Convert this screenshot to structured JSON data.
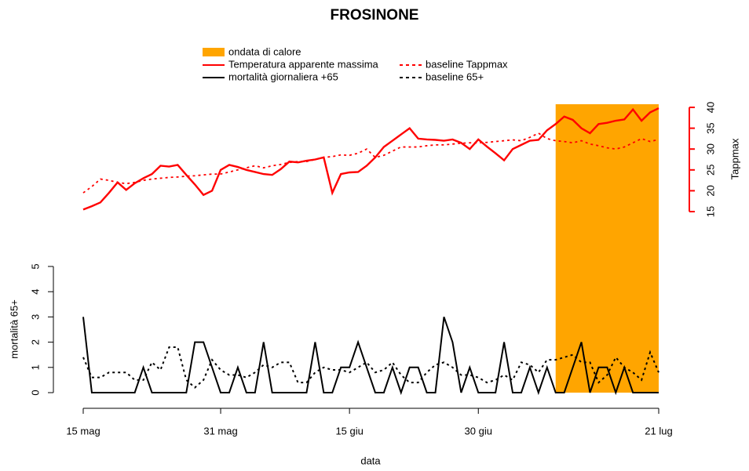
{
  "chart_data": {
    "type": "line",
    "title": "FROSINONE",
    "x_label": "data",
    "y_label": "mortalità 65+",
    "y2_label": "Tappmax",
    "categories": [
      "15 mag",
      null,
      null,
      null,
      null,
      null,
      null,
      null,
      null,
      null,
      null,
      null,
      null,
      null,
      null,
      null,
      "31 mag",
      null,
      null,
      null,
      null,
      null,
      null,
      null,
      null,
      null,
      null,
      null,
      null,
      null,
      null,
      "15 giu",
      null,
      null,
      null,
      null,
      null,
      null,
      null,
      null,
      null,
      null,
      null,
      null,
      null,
      null,
      "30 giu",
      null,
      null,
      null,
      null,
      null,
      null,
      null,
      null,
      null,
      null,
      null,
      null,
      null,
      null,
      null,
      null,
      null,
      null,
      null,
      null,
      "21 lug"
    ],
    "heatwave": {
      "name": "ondata di calore",
      "color": "#FFA500",
      "start": 55,
      "end": 67
    },
    "series": [
      {
        "name": "Temperatura apparente massima",
        "color": "#FF0000",
        "dash": false,
        "axis": "y2",
        "values": [
          15.5,
          16.3,
          17.2,
          19.5,
          22,
          20.2,
          21.8,
          23,
          24,
          26,
          25.8,
          26.2,
          23.8,
          21.5,
          19,
          20,
          25,
          26.2,
          25.7,
          25,
          24.5,
          24,
          23.8,
          25.2,
          27,
          26.8,
          27.2,
          27.5,
          28,
          19.5,
          24,
          24.4,
          24.5,
          26,
          28,
          30.5,
          32,
          33.5,
          35,
          32.5,
          32.3,
          32.2,
          32,
          32.3,
          31.5,
          30,
          32.3,
          30.6,
          29,
          27.3,
          30,
          31,
          32,
          32.2,
          34.5,
          36,
          37.8,
          37,
          35,
          33.8,
          36,
          36.3,
          36.8,
          37.1,
          39.5,
          36.8,
          38.8,
          39.8
        ]
      },
      {
        "name": "baseline Tappmax",
        "color": "#FF0000",
        "dash": true,
        "axis": "y2",
        "values": [
          19.5,
          21,
          22.8,
          22.5,
          22,
          21.7,
          22,
          22.5,
          22.8,
          23,
          23.2,
          23.3,
          23.5,
          23.6,
          23.8,
          24,
          24,
          24.5,
          25,
          25.5,
          26,
          25.5,
          26,
          26.3,
          26.8,
          27,
          27,
          27.5,
          28,
          28.2,
          28.6,
          28.5,
          29,
          30,
          28,
          28.5,
          29.5,
          30.5,
          30.5,
          30.5,
          30.8,
          31,
          31,
          31.2,
          31.4,
          31.5,
          31.5,
          31.6,
          31.8,
          32,
          32.2,
          32,
          32.8,
          33.8,
          32.5,
          32,
          31.8,
          31.5,
          32,
          31.2,
          30.8,
          30.3,
          30,
          30.5,
          31.5,
          32.5,
          31.8,
          32.3
        ]
      },
      {
        "name": "mortalità giornaliera +65",
        "color": "#000000",
        "dash": false,
        "axis": "y",
        "values": [
          3,
          0,
          0,
          0,
          0,
          0,
          0,
          1,
          0,
          0,
          0,
          0,
          0,
          2,
          2,
          1,
          0,
          0,
          1,
          0,
          0,
          2,
          0,
          0,
          0,
          0,
          0,
          2,
          0,
          0,
          1,
          1,
          2,
          1,
          0,
          0,
          1,
          0,
          1,
          1,
          0,
          0,
          3,
          2,
          0,
          1,
          0,
          0,
          0,
          2,
          0,
          0,
          1,
          0,
          1,
          0,
          0,
          1,
          2,
          0,
          1,
          1,
          0,
          1,
          0,
          0,
          0,
          0
        ]
      },
      {
        "name": "baseline 65+",
        "color": "#000000",
        "dash": true,
        "axis": "y",
        "values": [
          1.4,
          0.6,
          0.6,
          0.8,
          0.8,
          0.8,
          0.5,
          0.5,
          1.2,
          0.9,
          1.8,
          1.8,
          0.5,
          0.2,
          0.5,
          1.3,
          0.9,
          0.7,
          0.7,
          0.6,
          0.8,
          1.1,
          1.0,
          1.2,
          1.2,
          0.4,
          0.4,
          0.8,
          1.0,
          0.9,
          0.9,
          0.8,
          1.0,
          1.2,
          0.8,
          0.9,
          1.2,
          0.7,
          0.4,
          0.4,
          0.8,
          1.1,
          1.2,
          1.0,
          0.7,
          0.7,
          0.6,
          0.4,
          0.5,
          0.7,
          0.5,
          1.2,
          1.1,
          0.8,
          1.3,
          1.3,
          1.4,
          1.5,
          1.2,
          1.2,
          0.4,
          0.7,
          1.4,
          1.0,
          0.8,
          0.5,
          1.6,
          0.8
        ]
      }
    ],
    "ylim": [
      0,
      5
    ],
    "yticks": [
      0,
      1,
      2,
      3,
      4,
      5
    ],
    "y2lim": [
      15,
      40
    ],
    "y2ticks": [
      15,
      20,
      25,
      30,
      35,
      40
    ]
  }
}
